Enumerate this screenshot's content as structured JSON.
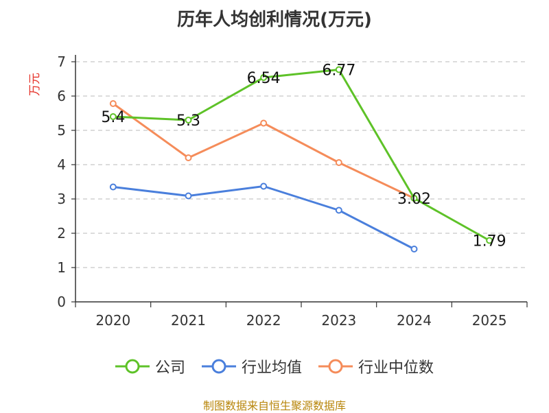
{
  "chart_data": {
    "type": "line",
    "title": "历年人均创利情况(万元)",
    "ylabel": "万元",
    "ylabel_color": "#e5332a",
    "xlabel": "",
    "ylim": [
      0,
      7
    ],
    "yticks": [
      "0",
      "1",
      "2",
      "3",
      "4",
      "5",
      "6",
      "7"
    ],
    "categories": [
      "2020",
      "2021",
      "2022",
      "2023",
      "2024",
      "2025"
    ],
    "grid": true,
    "legend_position": "bottom",
    "series": [
      {
        "name": "公司",
        "color": "#5ec228",
        "values": [
          5.4,
          5.3,
          6.54,
          6.77,
          3.02,
          1.79
        ],
        "labels": [
          "5.4",
          "5.3",
          "6.54",
          "6.77",
          "3.02",
          "1.79"
        ]
      },
      {
        "name": "行业均值",
        "color": "#4a7fdc",
        "values": [
          3.35,
          3.09,
          3.37,
          2.67,
          1.54,
          null
        ],
        "labels": null
      },
      {
        "name": "行业中位数",
        "color": "#f58c5a",
        "values": [
          5.78,
          4.2,
          5.21,
          4.06,
          3.02,
          null
        ],
        "labels": null
      }
    ]
  },
  "footer": {
    "source": "制图数据来自恒生聚源数据库"
  }
}
